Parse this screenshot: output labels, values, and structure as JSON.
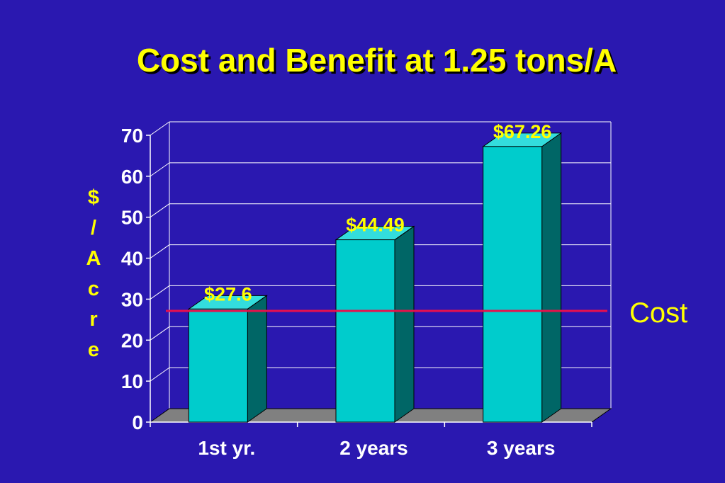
{
  "chart_data": {
    "type": "bar",
    "title": "Cost and Benefit at 1.25 tons/A",
    "ylabel": "$/Acre",
    "ylabel_chars": [
      "$",
      "/",
      "A",
      "c",
      "r",
      "e"
    ],
    "categories": [
      "1st yr.",
      "2 years",
      "3 years"
    ],
    "values": [
      27.6,
      44.49,
      67.26
    ],
    "data_labels": [
      "$27.6",
      "$44.49",
      "$67.26"
    ],
    "ylim": [
      0,
      70
    ],
    "yticks": [
      0,
      10,
      20,
      30,
      40,
      50,
      60,
      70
    ],
    "grid": true,
    "reference_line": {
      "label": "Cost",
      "value": 27.6
    },
    "colors": {
      "background": "#2a18b0",
      "bar_front": "#00cccc",
      "bar_side": "#006666",
      "bar_top": "#33dddd",
      "floor": "#808080",
      "reference_line": "#e8104c",
      "title": "#ffff00",
      "labels": "#ffff00",
      "ticks": "#ffffff"
    }
  }
}
